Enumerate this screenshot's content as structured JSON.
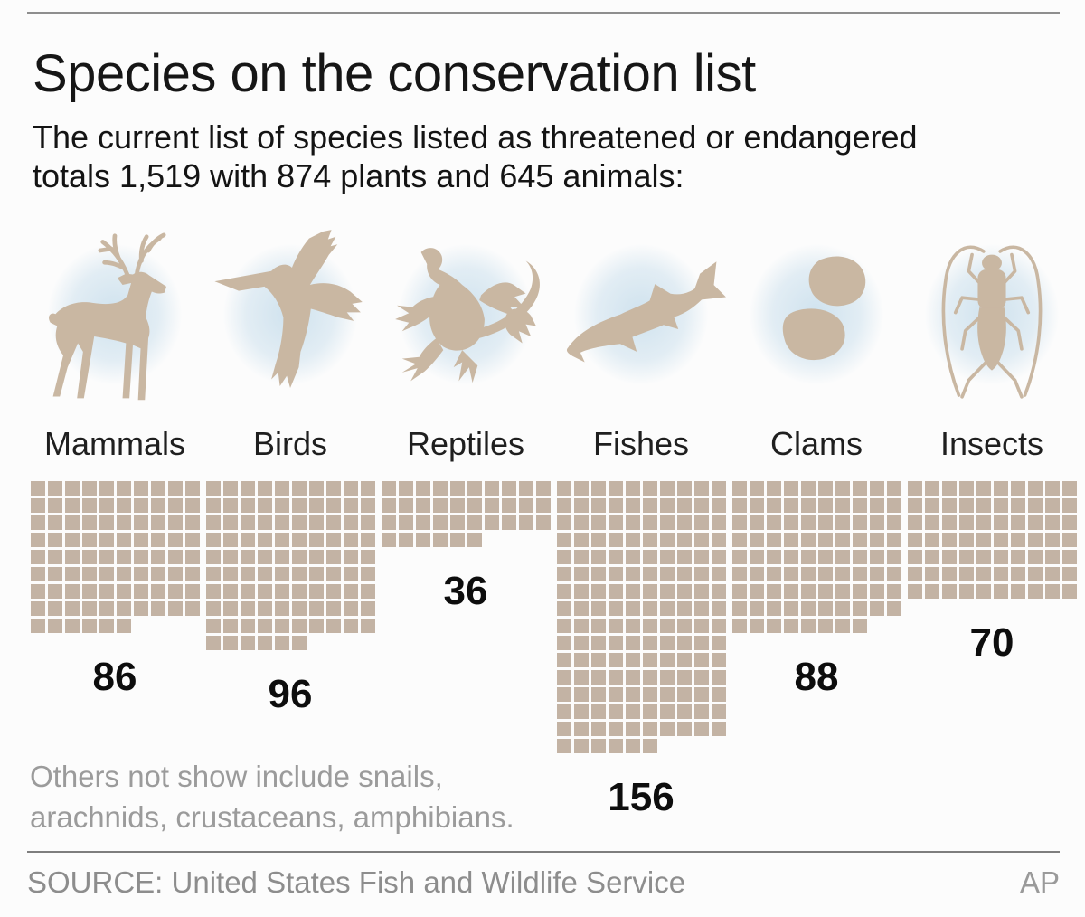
{
  "header": {
    "title": "Species on the conservation list",
    "subtitle_line1": "The current list of species listed as threatened or endangered",
    "subtitle_line2": "totals 1,519 with 874 plants and 645 animals:"
  },
  "chart_data": {
    "type": "pictogram",
    "unit_value_per_square": 1,
    "columns_per_row": 10,
    "categories": [
      "Mammals",
      "Birds",
      "Reptiles",
      "Fishes",
      "Clams",
      "Insects"
    ],
    "values": [
      86,
      96,
      36,
      156,
      88,
      70
    ],
    "icons": [
      "deer-icon",
      "pelican-icon",
      "lizard-icon",
      "fish-icon",
      "clams-icon",
      "insect-icon"
    ],
    "total_listed": "1,519",
    "plants_total": "874",
    "animals_total": "645",
    "note": "Others not show include snails, arachnids, crustaceans, amphibians.",
    "square_color": "#c3b3a4",
    "silhouette_color": "#c9b7a2",
    "glow_color": "#cfe2ee"
  },
  "footnote": {
    "line1": "Others not show include snails,",
    "line2": "arachnids, crustaceans, amphibians."
  },
  "footer": {
    "source": "SOURCE: United States Fish and Wildlife Service",
    "credit": "AP"
  }
}
